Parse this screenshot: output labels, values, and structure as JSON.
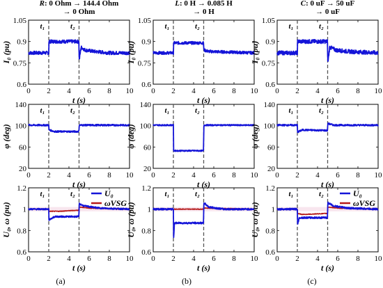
{
  "chart_data": [
    {
      "type": "line",
      "column": 0,
      "row": 0,
      "title_lines": [
        "R: 0 Ohm → 144.4 Ohm",
        "→ 0 Ohm"
      ],
      "title_italic_prefix": "R",
      "ylabel": "I₀ (pu)",
      "xlabel": "t (s)",
      "xlim": [
        0,
        10
      ],
      "ylim": [
        0.6,
        1.05
      ],
      "xticks": [
        "0",
        "2",
        "4",
        "6",
        "8",
        "10"
      ],
      "yticks": [
        "0.6",
        "0.75",
        "0.9",
        "1.05"
      ],
      "markers": [
        "t₁",
        "t₂"
      ],
      "event_times": [
        2,
        5
      ],
      "legend": [],
      "series": [
        {
          "color": "#1414d8",
          "values": [
            [
              0,
              0.82
            ],
            [
              2,
              0.82
            ],
            [
              2.02,
              0.9
            ],
            [
              4.98,
              0.9
            ],
            [
              5.02,
              0.77
            ],
            [
              5.2,
              0.86
            ],
            [
              5.6,
              0.84
            ],
            [
              6.5,
              0.83
            ],
            [
              8,
              0.82
            ],
            [
              10,
              0.82
            ]
          ],
          "noise": 0.012
        }
      ]
    },
    {
      "type": "line",
      "column": 1,
      "row": 0,
      "title_lines": [
        "L: 0 H → 0.085 H",
        "→ 0 H"
      ],
      "title_italic_prefix": "L",
      "ylabel": "I₀ (pu)",
      "xlabel": "t (s)",
      "xlim": [
        0,
        10
      ],
      "ylim": [
        0.6,
        1.05
      ],
      "xticks": [
        "0",
        "2",
        "4",
        "6",
        "8",
        "10"
      ],
      "yticks": [
        "0.6",
        "0.75",
        "0.9",
        "1.05"
      ],
      "markers": [
        "t₁",
        "t₂"
      ],
      "event_times": [
        2,
        5
      ],
      "legend": [],
      "series": [
        {
          "color": "#1414d8",
          "values": [
            [
              0,
              0.82
            ],
            [
              2,
              0.82
            ],
            [
              2.02,
              0.89
            ],
            [
              4.98,
              0.89
            ],
            [
              5.02,
              0.84
            ],
            [
              5.5,
              0.83
            ],
            [
              10,
              0.82
            ]
          ],
          "noise": 0.01
        }
      ]
    },
    {
      "type": "line",
      "column": 2,
      "row": 0,
      "title_lines": [
        "C: 0 uF → 50 uF",
        "→ 0 uF"
      ],
      "title_italic_prefix": "C",
      "ylabel": "I₀ (pu)",
      "xlabel": "t (s)",
      "xlim": [
        0,
        10
      ],
      "ylim": [
        0.6,
        1.05
      ],
      "xticks": [
        "0",
        "2",
        "4",
        "6",
        "8",
        "10"
      ],
      "yticks": [
        "0.6",
        "0.75",
        "0.9",
        "1.05"
      ],
      "markers": [
        "t₁",
        "t₂"
      ],
      "event_times": [
        2,
        5
      ],
      "legend": [],
      "series": [
        {
          "color": "#1414d8",
          "values": [
            [
              0,
              0.82
            ],
            [
              2,
              0.82
            ],
            [
              2.02,
              0.9
            ],
            [
              4.98,
              0.9
            ],
            [
              5.02,
              0.75
            ],
            [
              5.2,
              0.86
            ],
            [
              5.8,
              0.84
            ],
            [
              7,
              0.83
            ],
            [
              10,
              0.82
            ]
          ],
          "noise": 0.014
        }
      ]
    },
    {
      "type": "line",
      "column": 0,
      "row": 1,
      "ylabel": "φ (deg)",
      "xlabel": "t (s)",
      "xlim": [
        0,
        10
      ],
      "ylim": [
        20,
        140
      ],
      "xticks": [
        "0",
        "2",
        "4",
        "6",
        "8",
        "10"
      ],
      "yticks": [
        "20",
        "60",
        "100",
        "140"
      ],
      "markers": [
        "t₁",
        "t₂"
      ],
      "event_times": [
        2,
        5
      ],
      "legend": [],
      "series": [
        {
          "color": "#1414d8",
          "values": [
            [
              0,
              101
            ],
            [
              2,
              101
            ],
            [
              2.02,
              92
            ],
            [
              2.6,
              89
            ],
            [
              4.98,
              89
            ],
            [
              5.02,
              101
            ],
            [
              10,
              101
            ]
          ],
          "noise": 1.5
        }
      ]
    },
    {
      "type": "line",
      "column": 1,
      "row": 1,
      "ylabel": "φ (deg)",
      "xlabel": "t (s)",
      "xlim": [
        0,
        10
      ],
      "ylim": [
        20,
        140
      ],
      "xticks": [
        "0",
        "2",
        "4",
        "6",
        "8",
        "10"
      ],
      "yticks": [
        "20",
        "60",
        "100",
        "140"
      ],
      "markers": [
        "t₁",
        "t₂"
      ],
      "event_times": [
        2,
        5
      ],
      "legend": [],
      "series": [
        {
          "color": "#1414d8",
          "values": [
            [
              0,
              101
            ],
            [
              2,
              101
            ],
            [
              2.02,
              53
            ],
            [
              4.98,
              53
            ],
            [
              5.02,
              101
            ],
            [
              10,
              101
            ]
          ],
          "noise": 1.2
        }
      ]
    },
    {
      "type": "line",
      "column": 2,
      "row": 1,
      "ylabel": "φ (deg)",
      "xlabel": "t (s)",
      "xlim": [
        0,
        10
      ],
      "ylim": [
        20,
        140
      ],
      "xticks": [
        "0",
        "2",
        "4",
        "6",
        "8",
        "10"
      ],
      "yticks": [
        "20",
        "60",
        "100",
        "140"
      ],
      "markers": [
        "t₁",
        "t₂"
      ],
      "event_times": [
        2,
        5
      ],
      "legend": [],
      "series": [
        {
          "color": "#1414d8",
          "values": [
            [
              0,
              101
            ],
            [
              2,
              101
            ],
            [
              2.02,
              88
            ],
            [
              2.5,
              92
            ],
            [
              4.98,
              91
            ],
            [
              5.02,
              104
            ],
            [
              5.6,
              101
            ],
            [
              10,
              101
            ]
          ],
          "noise": 1.5
        }
      ]
    },
    {
      "type": "line",
      "column": 0,
      "row": 2,
      "ylabel": "U₀, ω (pu)",
      "xlabel": "t (s)",
      "xlim": [
        0,
        10
      ],
      "ylim": [
        0.6,
        1.2
      ],
      "xticks": [
        "0",
        "2",
        "4",
        "6",
        "8",
        "10"
      ],
      "yticks": [
        "0.6",
        "0.8",
        "1",
        "1.2"
      ],
      "markers": [
        "t₁",
        "t₂"
      ],
      "event_times": [
        2,
        5
      ],
      "legend": [
        "U₀",
        "ωVSG"
      ],
      "series": [
        {
          "name": "U₀",
          "color": "#1414d8",
          "values": [
            [
              0,
              1.0
            ],
            [
              2,
              1.0
            ],
            [
              2.02,
              0.9
            ],
            [
              2.6,
              0.93
            ],
            [
              4.98,
              0.93
            ],
            [
              5.02,
              1.05
            ],
            [
              5.5,
              1.03
            ],
            [
              7,
              1.01
            ],
            [
              10,
              1.0
            ]
          ],
          "noise": 0.007
        },
        {
          "name": "ωVSG",
          "color": "#b51a1a",
          "values": [
            [
              0,
              1.0
            ],
            [
              2,
              1.0
            ],
            [
              2.02,
              0.98
            ],
            [
              3,
              0.98
            ],
            [
              4.98,
              0.99
            ],
            [
              5.02,
              1.02
            ],
            [
              6,
              1.01
            ],
            [
              10,
              1.0
            ]
          ],
          "noise": 0.003
        }
      ]
    },
    {
      "type": "line",
      "column": 1,
      "row": 2,
      "ylabel": "U₀, ω (pu)",
      "xlabel": "t (s)",
      "xlim": [
        0,
        10
      ],
      "ylim": [
        0.6,
        1.2
      ],
      "xticks": [
        "0",
        "2",
        "4",
        "6",
        "8",
        "10"
      ],
      "yticks": [
        "0.6",
        "0.8",
        "1",
        "1.2"
      ],
      "markers": [
        "t₁",
        "t₂"
      ],
      "event_times": [
        2,
        5
      ],
      "legend": [],
      "series": [
        {
          "name": "U₀",
          "color": "#1414d8",
          "values": [
            [
              0,
              1.0
            ],
            [
              2,
              1.0
            ],
            [
              2.02,
              0.72
            ],
            [
              2.1,
              0.87
            ],
            [
              4.98,
              0.87
            ],
            [
              5.02,
              1.06
            ],
            [
              5.5,
              1.02
            ],
            [
              7,
              1.0
            ],
            [
              10,
              1.0
            ]
          ],
          "noise": 0.008
        },
        {
          "name": "ωVSG",
          "color": "#b51a1a",
          "values": [
            [
              0,
              1.0
            ],
            [
              2,
              1.0
            ],
            [
              2.02,
              1.0
            ],
            [
              4.98,
              1.0
            ],
            [
              5.02,
              1.01
            ],
            [
              10,
              1.0
            ]
          ],
          "noise": 0.003
        }
      ]
    },
    {
      "type": "line",
      "column": 2,
      "row": 2,
      "ylabel": "U₀, ω (pu)",
      "xlabel": "t (s)",
      "xlim": [
        0,
        10
      ],
      "ylim": [
        0.6,
        1.2
      ],
      "xticks": [
        "0",
        "2",
        "4",
        "6",
        "8",
        "10"
      ],
      "yticks": [
        "0.6",
        "0.8",
        "1",
        "1.2"
      ],
      "markers": [
        "t₁",
        "t₂"
      ],
      "event_times": [
        2,
        5
      ],
      "legend": [
        "U₀",
        "ωVSG"
      ],
      "series": [
        {
          "name": "U₀",
          "color": "#1414d8",
          "values": [
            [
              0,
              1.0
            ],
            [
              2,
              1.0
            ],
            [
              2.02,
              0.86
            ],
            [
              2.2,
              0.92
            ],
            [
              4.98,
              0.92
            ],
            [
              5.02,
              1.06
            ],
            [
              5.6,
              1.03
            ],
            [
              7,
              1.01
            ],
            [
              10,
              1.0
            ]
          ],
          "noise": 0.008
        },
        {
          "name": "ωVSG",
          "color": "#b51a1a",
          "values": [
            [
              0,
              1.0
            ],
            [
              2,
              1.0
            ],
            [
              2.02,
              0.96
            ],
            [
              2.5,
              0.95
            ],
            [
              4.98,
              0.96
            ],
            [
              5.02,
              1.02
            ],
            [
              6,
              1.01
            ],
            [
              10,
              1.0
            ]
          ],
          "noise": 0.003
        }
      ]
    }
  ],
  "captions": [
    "(a)",
    "(b)",
    "(c)"
  ]
}
